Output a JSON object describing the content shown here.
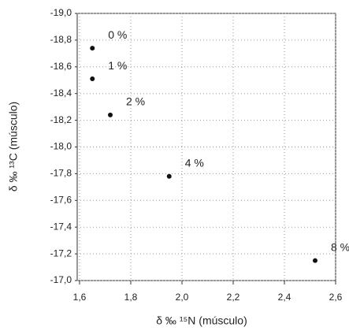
{
  "chart_data": {
    "type": "scatter",
    "x_label": "δ ‰ ¹⁵N (músculo)",
    "y_label": "δ ‰ ¹³C (músculo)",
    "series": [
      {
        "color": "#111111",
        "x": [
          1.65,
          1.65,
          1.72,
          1.95,
          2.52
        ],
        "values": [
          -18.74,
          -18.51,
          -18.24,
          -17.78,
          -17.15
        ],
        "labels": [
          "0 %",
          "1 %",
          "2 %",
          "4 %",
          "8 %"
        ]
      }
    ],
    "xlim": [
      1.6,
      2.6
    ],
    "xticks": [
      {
        "value": 1.6,
        "label": "1,6"
      },
      {
        "value": 1.8,
        "label": "1,8"
      },
      {
        "value": 2.0,
        "label": "2,0"
      },
      {
        "value": 2.2,
        "label": "2,2"
      },
      {
        "value": 2.4,
        "label": "2,4"
      },
      {
        "value": 2.6,
        "label": "2,6"
      }
    ],
    "ylim": [
      -19.0,
      -17.0
    ],
    "y_reversed": true,
    "yticks": [
      {
        "value": -19.0,
        "label": "-19,0"
      },
      {
        "value": -18.8,
        "label": "-18,8"
      },
      {
        "value": -18.6,
        "label": "-18,6"
      },
      {
        "value": -18.4,
        "label": "-18,4"
      },
      {
        "value": -18.2,
        "label": "-18,2"
      },
      {
        "value": -18.0,
        "label": "-18,0"
      },
      {
        "value": -17.8,
        "label": "-17,8"
      },
      {
        "value": -17.6,
        "label": "-17,6"
      },
      {
        "value": -17.4,
        "label": "-17,4"
      },
      {
        "value": -17.2,
        "label": "-17,2"
      },
      {
        "value": -17.0,
        "label": "-17,0"
      }
    ],
    "grid": true
  }
}
